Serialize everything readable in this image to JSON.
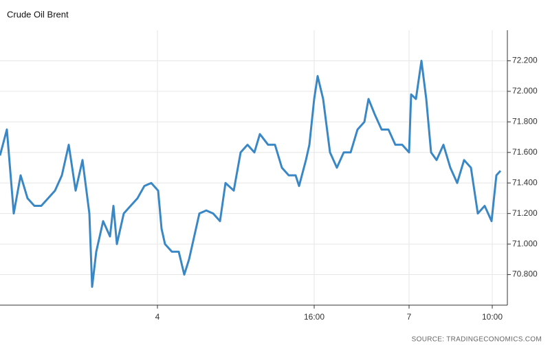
{
  "chart_data": {
    "type": "line",
    "title": "Crude Oil Brent",
    "source": "SOURCE: TRADINGECONOMICS.COM",
    "x": [
      0,
      10,
      20,
      30,
      40,
      50,
      60,
      70,
      80,
      90,
      100,
      110,
      120,
      130,
      134,
      140,
      150,
      160,
      165,
      170,
      180,
      190,
      200,
      210,
      220,
      230,
      235,
      240,
      250,
      260,
      268,
      275,
      290,
      300,
      310,
      320,
      328,
      340,
      350,
      360,
      370,
      378,
      390,
      400,
      410,
      420,
      430,
      435,
      445,
      450,
      457,
      462,
      470,
      480,
      490,
      500,
      510,
      520,
      530,
      536,
      545,
      555,
      565,
      575,
      585,
      595,
      598,
      605,
      613,
      620,
      627,
      635,
      645,
      655,
      665,
      675,
      685,
      695,
      705,
      710,
      715,
      722,
      728
    ],
    "series": [
      {
        "name": "Crude Oil Brent",
        "color": "#3a87c6",
        "values": [
          71.58,
          71.75,
          71.2,
          71.45,
          71.3,
          71.25,
          71.25,
          71.3,
          71.35,
          71.45,
          71.65,
          71.35,
          71.55,
          71.2,
          70.72,
          70.95,
          71.15,
          71.05,
          71.25,
          71.0,
          71.2,
          71.25,
          71.3,
          71.38,
          71.4,
          71.35,
          71.1,
          71.0,
          70.95,
          70.95,
          70.8,
          70.9,
          71.2,
          71.22,
          71.2,
          71.15,
          71.4,
          71.35,
          71.6,
          71.65,
          71.6,
          71.72,
          71.65,
          71.65,
          71.5,
          71.45,
          71.45,
          71.38,
          71.55,
          71.65,
          71.95,
          72.1,
          71.95,
          71.6,
          71.5,
          71.6,
          71.6,
          71.75,
          71.8,
          71.95,
          71.85,
          71.75,
          71.75,
          71.65,
          71.65,
          71.6,
          71.98,
          71.95,
          72.2,
          71.95,
          71.6,
          71.55,
          71.65,
          71.5,
          71.4,
          71.55,
          71.5,
          71.2,
          71.25,
          71.2,
          71.15,
          71.45,
          71.48
        ]
      }
    ],
    "xlim": [
      0,
      738
    ],
    "xticks": [
      {
        "value": 229,
        "label": "4"
      },
      {
        "value": 457,
        "label": "16:00"
      },
      {
        "value": 595,
        "label": "7"
      },
      {
        "value": 716,
        "label": "10:00"
      }
    ],
    "ylim": [
      70.6,
      72.4
    ],
    "yticks": [
      {
        "value": 70.8,
        "label": "70.800"
      },
      {
        "value": 71.0,
        "label": "71.000"
      },
      {
        "value": 71.2,
        "label": "71.200"
      },
      {
        "value": 71.4,
        "label": "71.400"
      },
      {
        "value": 71.6,
        "label": "71.600"
      },
      {
        "value": 71.8,
        "label": "71.800"
      },
      {
        "value": 72.0,
        "label": "72.000"
      },
      {
        "value": 72.2,
        "label": "72.200"
      }
    ],
    "grid": true
  }
}
